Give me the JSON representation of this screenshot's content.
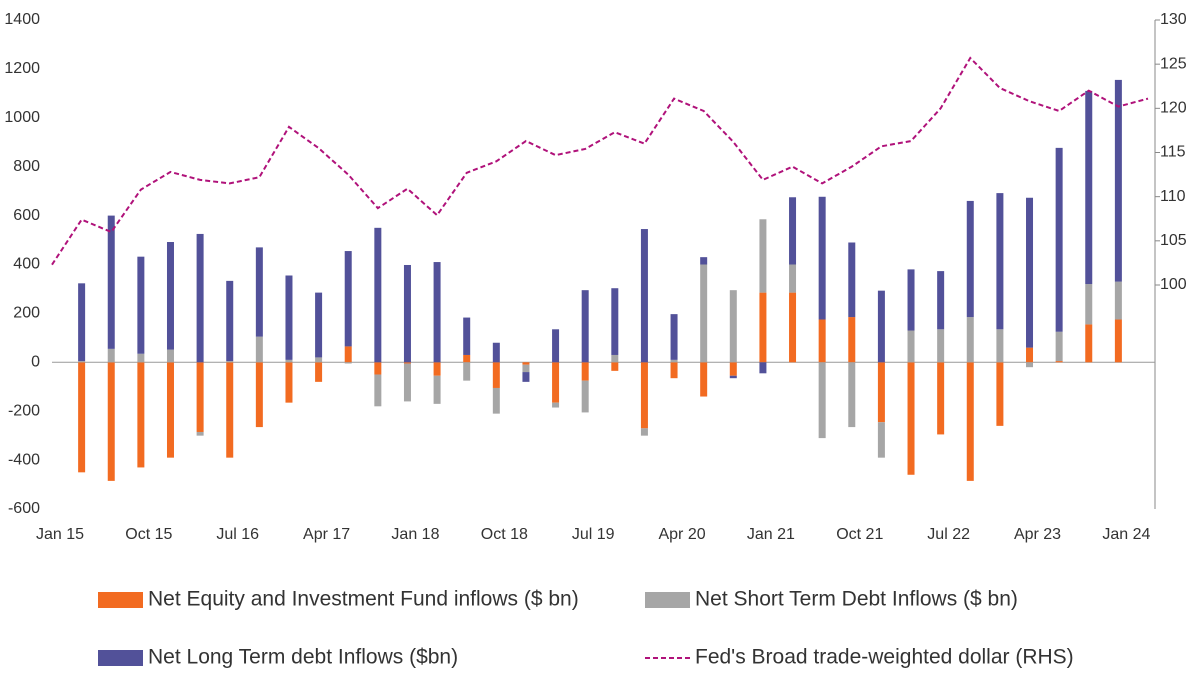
{
  "chart_data": {
    "type": "bar",
    "categories": [
      "Jan 15",
      null,
      null,
      "Oct 15",
      null,
      null,
      "Jul 16",
      null,
      null,
      "Apr 17",
      null,
      null,
      "Jan 18",
      null,
      null,
      "Oct 18",
      null,
      null,
      "Jul 19",
      null,
      null,
      "Apr 20",
      null,
      null,
      "Jan 21",
      null,
      null,
      "Oct 21",
      null,
      null,
      "Jul 22",
      null,
      null,
      "Apr 23",
      null,
      null,
      "Jan 24",
      null
    ],
    "series": [
      {
        "name": "Net Equity and Investment Fund inflows ($ bn)",
        "color": "#f26b21",
        "values": [
          null,
          -450,
          -485,
          -430,
          -390,
          -285,
          -390,
          -265,
          -165,
          -80,
          65,
          -50,
          -5,
          -55,
          30,
          -105,
          -10,
          -165,
          -75,
          -35,
          -270,
          -65,
          -140,
          -55,
          285,
          285,
          175,
          185,
          -245,
          -460,
          -295,
          -485,
          -260,
          60,
          5,
          155,
          175,
          null
        ]
      },
      {
        "name": "Net Short Term Debt Inflows ($ bn)",
        "color": "#a6a6a6",
        "values": [
          null,
          5,
          55,
          35,
          52,
          -15,
          5,
          105,
          10,
          20,
          -5,
          -130,
          -155,
          -115,
          -75,
          -105,
          -30,
          -20,
          -130,
          30,
          -30,
          10,
          400,
          295,
          300,
          115,
          -310,
          -265,
          -145,
          130,
          135,
          185,
          135,
          -20,
          120,
          165,
          155,
          null
        ]
      },
      {
        "name": "Net Long Term debt Inflows ($bn)",
        "color": "#525199",
        "values": [
          null,
          318,
          545,
          397,
          440,
          525,
          328,
          365,
          345,
          265,
          390,
          550,
          398,
          410,
          153,
          80,
          -40,
          135,
          295,
          273,
          545,
          187,
          30,
          -10,
          -45,
          275,
          502,
          305,
          293,
          250,
          238,
          475,
          557,
          613,
          752,
          790,
          825,
          null
        ]
      },
      {
        "name": "Fed's Broad trade-weighted dollar (RHS)",
        "color": "#b0127a",
        "type": "line",
        "axis": "y2",
        "line_style": "dashed",
        "values": [
          102.3,
          107.4,
          106.0,
          110.8,
          112.8,
          111.9,
          111.5,
          112.2,
          117.9,
          115.5,
          112.5,
          108.7,
          110.9,
          107.9,
          112.7,
          114.0,
          116.3,
          114.7,
          115.4,
          117.3,
          116.0,
          121.1,
          119.7,
          116.2,
          111.9,
          113.4,
          111.5,
          113.4,
          115.7,
          116.3,
          120.0,
          125.7,
          122.3,
          120.8,
          119.7,
          122.0,
          120.2,
          121.1
        ]
      }
    ],
    "ylim": [
      -600,
      1400
    ],
    "yticks": [
      -600,
      -400,
      -200,
      0,
      200,
      400,
      600,
      800,
      1000,
      1200,
      1400
    ],
    "y2lim": [
      74.64,
      130
    ],
    "y2ticks": [
      100,
      105,
      110,
      115,
      120,
      125,
      130
    ]
  }
}
